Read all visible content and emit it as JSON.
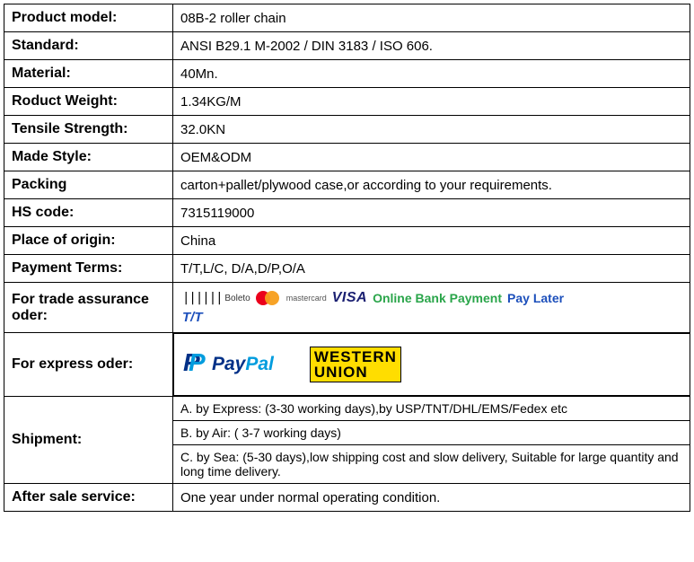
{
  "rows": {
    "product_model": {
      "label": "Product model:",
      "value": "08B-2 roller chain"
    },
    "standard": {
      "label": "Standard:",
      "value": "ANSI B29.1 M-2002 / DIN 3183 / ISO 606."
    },
    "material": {
      "label": "Material:",
      "value": "40Mn."
    },
    "weight": {
      "label": "Roduct  Weight:",
      "value": "1.34KG/M"
    },
    "tensile": {
      "label": "Tensile Strength:",
      "value": "32.0KN"
    },
    "made_style": {
      "label": "Made Style:",
      "value": "OEM&ODM"
    },
    "packing": {
      "label": "Packing",
      "value": "carton+pallet/plywood case,or according to your requirements."
    },
    "hs_code": {
      "label": "HS code:",
      "value": "7315119000"
    },
    "origin": {
      "label": "Place of origin:",
      "value": "China"
    },
    "payment_terms": {
      "label": "Payment Terms:",
      "value": "T/T,L/C, D/A,D/P,O/A"
    },
    "trade_assurance": {
      "label": "For trade assurance oder:",
      "boleto": "Boleto",
      "mastercard": "mastercard",
      "visa": "VISA",
      "online_bank": "Online Bank Payment",
      "pay_later": "Pay Later",
      "tt": "T/T"
    },
    "express_order": {
      "label": "For express oder:",
      "paypal": "PayPal",
      "western_union_line1": "WESTERN",
      "western_union_line2": "UNION"
    },
    "shipment": {
      "label": "Shipment:",
      "a": "A. by Express: (3-30 working days),by USP/TNT/DHL/EMS/Fedex etc",
      "b": "B. by Air: ( 3-7 working days)",
      "c": "C. by Sea: (5-30 days),low shipping cost and slow delivery, Suitable for large quantity and long time delivery."
    },
    "after_sale": {
      "label": "After sale service:",
      "value": "One year under normal operating condition."
    }
  },
  "colors": {
    "border": "#000000",
    "visa": "#1a1f71",
    "mc_red": "#eb001b",
    "mc_orange": "#f79e1b",
    "green": "#2aa54a",
    "blue": "#1c4fbb",
    "paypal_dark": "#003087",
    "paypal_light": "#009cde",
    "wu_bg": "#ffdd00"
  }
}
